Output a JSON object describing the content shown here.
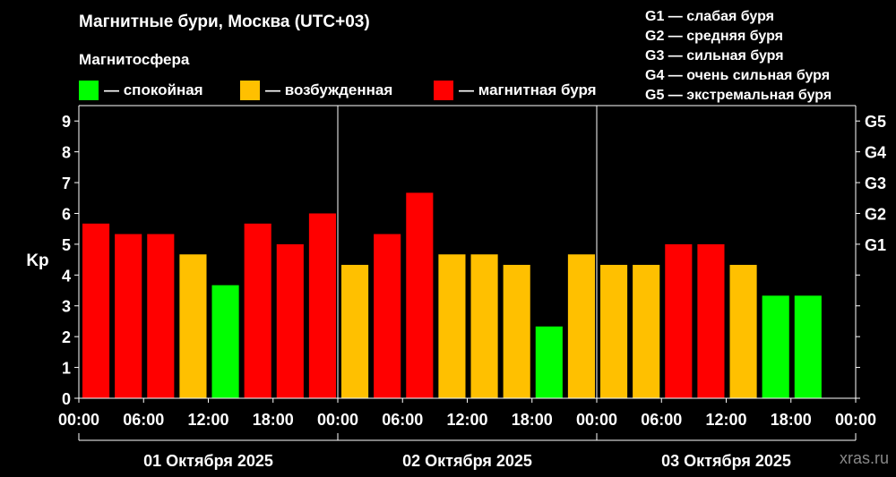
{
  "header": {
    "title": "Магнитные бури, Москва (UTC+03)",
    "subtitle": "Магнитосфера"
  },
  "legend": [
    {
      "label": "— спокойная",
      "color": "#00ff00"
    },
    {
      "label": "— возбужденная",
      "color": "#ffc000"
    },
    {
      "label": "— магнитная буря",
      "color": "#ff0000"
    }
  ],
  "storm_scale": [
    "G1 — слабая буря",
    "G2 — средняя буря",
    "G3 — сильная буря",
    "G4 — очень сильная буря",
    "G5 — экстремальная буря"
  ],
  "chart_data": {
    "type": "bar",
    "ylabel": "Kp",
    "ylim": [
      0,
      9.5
    ],
    "y_ticks": [
      0,
      1,
      2,
      3,
      4,
      5,
      6,
      7,
      8,
      9
    ],
    "right_ticks": [
      {
        "value": 5,
        "label": "G1"
      },
      {
        "value": 6,
        "label": "G2"
      },
      {
        "value": 7,
        "label": "G3"
      },
      {
        "value": 8,
        "label": "G4"
      },
      {
        "value": 9,
        "label": "G5"
      }
    ],
    "x_tick_labels": [
      "00:00",
      "06:00",
      "12:00",
      "18:00",
      "00:00",
      "06:00",
      "12:00",
      "18:00",
      "00:00",
      "06:00",
      "12:00",
      "18:00",
      "00:00"
    ],
    "days": [
      "01 Октября 2025",
      "02 Октября 2025",
      "03 Октября 2025"
    ],
    "colors": {
      "quiet": "#00ff00",
      "excited": "#ffc000",
      "storm": "#ff0000"
    },
    "series": [
      {
        "values": [
          5.67,
          5.33,
          5.33,
          4.67,
          3.67,
          5.67,
          5.0,
          6.0,
          4.33,
          5.33,
          6.67,
          4.67,
          4.67,
          4.33,
          2.33,
          4.67,
          4.33,
          4.33,
          5.0,
          5.0,
          4.33,
          3.33,
          3.33
        ],
        "levels": [
          "storm",
          "storm",
          "storm",
          "excited",
          "quiet",
          "storm",
          "storm",
          "storm",
          "excited",
          "storm",
          "storm",
          "excited",
          "excited",
          "excited",
          "quiet",
          "excited",
          "excited",
          "excited",
          "storm",
          "storm",
          "excited",
          "quiet",
          "quiet"
        ]
      }
    ]
  },
  "watermark": "xras.ru"
}
